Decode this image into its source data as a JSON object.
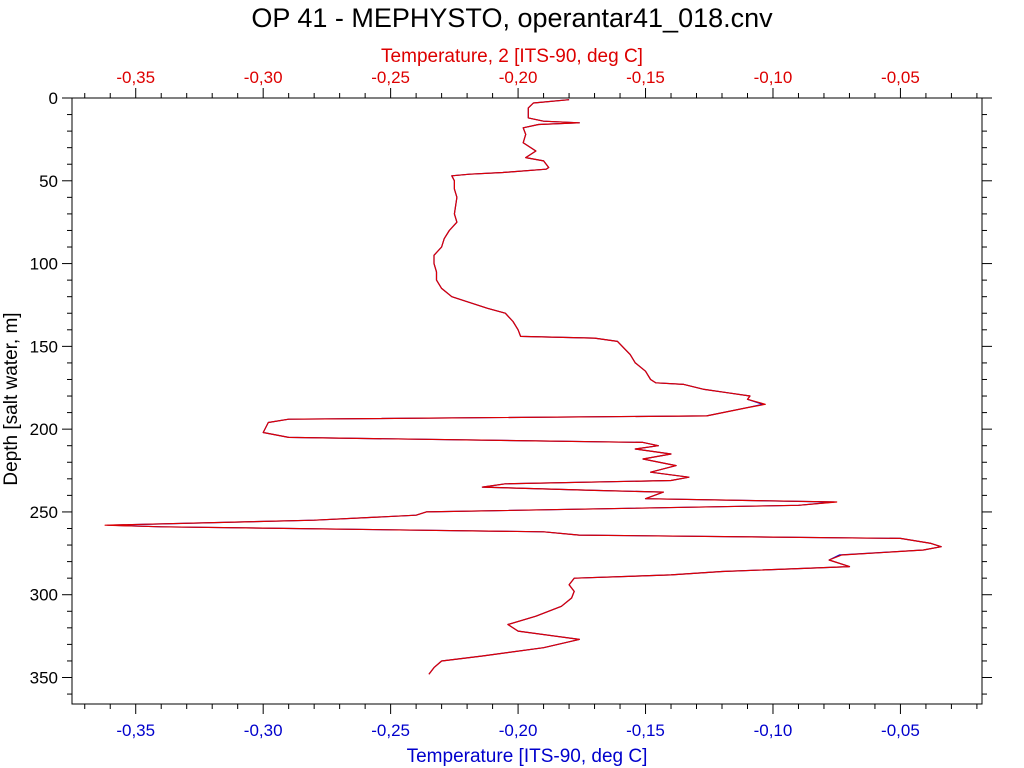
{
  "chart_data": {
    "type": "line",
    "title": "OP 41 - MEPHYSTO, operantar41_018.cnv",
    "xlabel_bottom": "Temperature [ITS-90, deg C]",
    "xlabel_top": "Temperature, 2 [ITS-90, deg C]",
    "ylabel": "Depth [salt water, m]",
    "xlim": [
      -0.375,
      -0.018
    ],
    "ylim": [
      0,
      366
    ],
    "y_inverted": true,
    "x_ticks": [
      -0.35,
      -0.3,
      -0.25,
      -0.2,
      -0.15,
      -0.1,
      -0.05
    ],
    "x_tick_labels": [
      "-0,35",
      "-0,30",
      "-0,25",
      "-0,20",
      "-0,15",
      "-0,10",
      "-0,05"
    ],
    "y_ticks": [
      0,
      50,
      100,
      150,
      200,
      250,
      300,
      350
    ],
    "y_tick_labels": [
      "0",
      "50",
      "100",
      "150",
      "200",
      "250",
      "300",
      "350"
    ],
    "grid": false,
    "colors": {
      "bottom_axis": "#0000cc",
      "top_axis": "#dd0000",
      "title": "#000000"
    },
    "series": [
      {
        "axis": "bottom",
        "color": "#0000cc",
        "points": [
          [
            -0.18,
            1
          ],
          [
            -0.194,
            3
          ],
          [
            -0.196,
            6
          ],
          [
            -0.196,
            9
          ],
          [
            -0.196,
            12
          ],
          [
            -0.19,
            14
          ],
          [
            -0.176,
            15
          ],
          [
            -0.192,
            16
          ],
          [
            -0.198,
            18
          ],
          [
            -0.197,
            22
          ],
          [
            -0.198,
            27
          ],
          [
            -0.193,
            32
          ],
          [
            -0.197,
            36
          ],
          [
            -0.19,
            38
          ],
          [
            -0.188,
            42
          ],
          [
            -0.189,
            43
          ],
          [
            -0.206,
            45
          ],
          [
            -0.219,
            46
          ],
          [
            -0.226,
            47
          ],
          [
            -0.225,
            50
          ],
          [
            -0.225,
            55
          ],
          [
            -0.224,
            60
          ],
          [
            -0.225,
            70
          ],
          [
            -0.224,
            75
          ],
          [
            -0.227,
            80
          ],
          [
            -0.229,
            85
          ],
          [
            -0.23,
            90
          ],
          [
            -0.233,
            95
          ],
          [
            -0.233,
            100
          ],
          [
            -0.232,
            105
          ],
          [
            -0.232,
            110
          ],
          [
            -0.23,
            115
          ],
          [
            -0.226,
            120
          ],
          [
            -0.22,
            123
          ],
          [
            -0.212,
            127
          ],
          [
            -0.205,
            130
          ],
          [
            -0.202,
            135
          ],
          [
            -0.2,
            140
          ],
          [
            -0.199,
            144
          ],
          [
            -0.17,
            145
          ],
          [
            -0.161,
            147
          ],
          [
            -0.156,
            155
          ],
          [
            -0.154,
            160
          ],
          [
            -0.15,
            165
          ],
          [
            -0.148,
            170
          ],
          [
            -0.146,
            172
          ],
          [
            -0.135,
            173
          ],
          [
            -0.127,
            176
          ],
          [
            -0.118,
            178
          ],
          [
            -0.109,
            180
          ],
          [
            -0.11,
            182
          ],
          [
            -0.104,
            185
          ],
          [
            -0.11,
            187
          ],
          [
            -0.126,
            192
          ],
          [
            -0.29,
            194
          ],
          [
            -0.298,
            196
          ],
          [
            -0.3,
            202
          ],
          [
            -0.29,
            205
          ],
          [
            -0.151,
            208
          ],
          [
            -0.145,
            210
          ],
          [
            -0.154,
            212
          ],
          [
            -0.14,
            215
          ],
          [
            -0.151,
            218
          ],
          [
            -0.138,
            222
          ],
          [
            -0.148,
            226
          ],
          [
            -0.133,
            229
          ],
          [
            -0.14,
            231
          ],
          [
            -0.205,
            233
          ],
          [
            -0.214,
            235
          ],
          [
            -0.17,
            237
          ],
          [
            -0.143,
            238
          ],
          [
            -0.15,
            242
          ],
          [
            -0.076,
            244
          ],
          [
            -0.09,
            246
          ],
          [
            -0.236,
            250
          ],
          [
            -0.24,
            252
          ],
          [
            -0.28,
            255
          ],
          [
            -0.361,
            258
          ],
          [
            -0.34,
            259
          ],
          [
            -0.19,
            262
          ],
          [
            -0.176,
            264
          ],
          [
            -0.05,
            266
          ],
          [
            -0.038,
            269
          ],
          [
            -0.034,
            271
          ],
          [
            -0.041,
            273
          ],
          [
            -0.074,
            276
          ],
          [
            -0.078,
            279
          ],
          [
            -0.07,
            283
          ],
          [
            -0.12,
            286
          ],
          [
            -0.14,
            288
          ],
          [
            -0.178,
            290
          ],
          [
            -0.18,
            294
          ],
          [
            -0.178,
            298
          ],
          [
            -0.179,
            302
          ],
          [
            -0.183,
            307
          ],
          [
            -0.193,
            313
          ],
          [
            -0.204,
            318
          ],
          [
            -0.2,
            322
          ],
          [
            -0.176,
            327
          ],
          [
            -0.19,
            332
          ],
          [
            -0.214,
            337
          ],
          [
            -0.23,
            340
          ],
          [
            -0.233,
            344
          ],
          [
            -0.235,
            348
          ]
        ]
      },
      {
        "axis": "top",
        "color": "#dd0000",
        "points": [
          [
            -0.18,
            1
          ],
          [
            -0.194,
            3
          ],
          [
            -0.196,
            6
          ],
          [
            -0.196,
            9
          ],
          [
            -0.196,
            12
          ],
          [
            -0.19,
            14
          ],
          [
            -0.176,
            15
          ],
          [
            -0.192,
            16
          ],
          [
            -0.198,
            18
          ],
          [
            -0.197,
            22
          ],
          [
            -0.198,
            27
          ],
          [
            -0.193,
            32
          ],
          [
            -0.197,
            36
          ],
          [
            -0.19,
            38
          ],
          [
            -0.188,
            42
          ],
          [
            -0.189,
            43
          ],
          [
            -0.206,
            45
          ],
          [
            -0.219,
            46
          ],
          [
            -0.226,
            47
          ],
          [
            -0.225,
            50
          ],
          [
            -0.225,
            55
          ],
          [
            -0.224,
            60
          ],
          [
            -0.225,
            70
          ],
          [
            -0.224,
            75
          ],
          [
            -0.227,
            80
          ],
          [
            -0.229,
            85
          ],
          [
            -0.23,
            90
          ],
          [
            -0.233,
            95
          ],
          [
            -0.233,
            100
          ],
          [
            -0.232,
            105
          ],
          [
            -0.232,
            110
          ],
          [
            -0.23,
            115
          ],
          [
            -0.226,
            120
          ],
          [
            -0.22,
            123
          ],
          [
            -0.212,
            127
          ],
          [
            -0.205,
            130
          ],
          [
            -0.202,
            135
          ],
          [
            -0.2,
            140
          ],
          [
            -0.199,
            144
          ],
          [
            -0.17,
            145
          ],
          [
            -0.161,
            147
          ],
          [
            -0.156,
            155
          ],
          [
            -0.154,
            160
          ],
          [
            -0.15,
            165
          ],
          [
            -0.148,
            170
          ],
          [
            -0.146,
            172
          ],
          [
            -0.135,
            173
          ],
          [
            -0.127,
            176
          ],
          [
            -0.118,
            178
          ],
          [
            -0.109,
            180
          ],
          [
            -0.11,
            182
          ],
          [
            -0.103,
            185
          ],
          [
            -0.11,
            187
          ],
          [
            -0.126,
            192
          ],
          [
            -0.29,
            194
          ],
          [
            -0.298,
            196
          ],
          [
            -0.3,
            202
          ],
          [
            -0.29,
            205
          ],
          [
            -0.151,
            208
          ],
          [
            -0.145,
            210
          ],
          [
            -0.154,
            212
          ],
          [
            -0.14,
            215
          ],
          [
            -0.151,
            218
          ],
          [
            -0.138,
            222
          ],
          [
            -0.148,
            226
          ],
          [
            -0.133,
            229
          ],
          [
            -0.14,
            231
          ],
          [
            -0.205,
            233
          ],
          [
            -0.214,
            235
          ],
          [
            -0.17,
            237
          ],
          [
            -0.143,
            238
          ],
          [
            -0.15,
            242
          ],
          [
            -0.075,
            244
          ],
          [
            -0.09,
            246
          ],
          [
            -0.236,
            250
          ],
          [
            -0.24,
            252
          ],
          [
            -0.28,
            255
          ],
          [
            -0.362,
            258
          ],
          [
            -0.34,
            259
          ],
          [
            -0.19,
            262
          ],
          [
            -0.176,
            264
          ],
          [
            -0.05,
            266
          ],
          [
            -0.038,
            269
          ],
          [
            -0.034,
            271
          ],
          [
            -0.041,
            273
          ],
          [
            -0.073,
            276
          ],
          [
            -0.078,
            279
          ],
          [
            -0.07,
            283
          ],
          [
            -0.12,
            286
          ],
          [
            -0.14,
            288
          ],
          [
            -0.178,
            290
          ],
          [
            -0.18,
            294
          ],
          [
            -0.178,
            298
          ],
          [
            -0.179,
            302
          ],
          [
            -0.183,
            307
          ],
          [
            -0.193,
            313
          ],
          [
            -0.204,
            318
          ],
          [
            -0.2,
            322
          ],
          [
            -0.176,
            327
          ],
          [
            -0.19,
            332
          ],
          [
            -0.214,
            337
          ],
          [
            -0.23,
            340
          ],
          [
            -0.233,
            344
          ],
          [
            -0.235,
            348
          ]
        ]
      }
    ]
  }
}
